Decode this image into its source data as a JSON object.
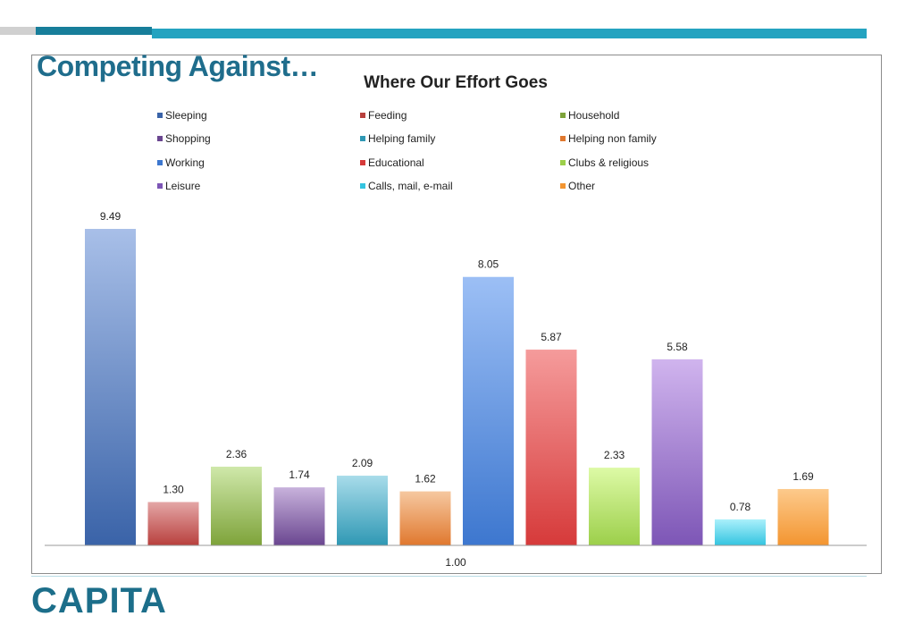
{
  "slide": {
    "title": "Competing Against…",
    "logo": "CAPITA",
    "colors": {
      "accent": "#24a3c0",
      "accent_dark": "#177e9a",
      "title": "#1f6d8c"
    }
  },
  "chart_data": {
    "type": "bar",
    "title": "Where Our Effort Goes",
    "xlabel": "",
    "ylabel": "",
    "categories": [
      "1.00"
    ],
    "ylim": [
      0,
      10
    ],
    "grid": false,
    "legend_position": "top",
    "series": [
      {
        "name": "Sleeping",
        "value": 9.49,
        "color_top": "#a8bfe8",
        "color_bottom": "#3a63a8"
      },
      {
        "name": "Feeding",
        "value": 1.3,
        "color_top": "#e4a6a6",
        "color_bottom": "#b8403d"
      },
      {
        "name": "Household",
        "value": 2.36,
        "color_top": "#cfe8aa",
        "color_bottom": "#7ea33a"
      },
      {
        "name": "Shopping",
        "value": 1.74,
        "color_top": "#c8b2dc",
        "color_bottom": "#6a4690"
      },
      {
        "name": "Helping family",
        "value": 2.09,
        "color_top": "#a8dcea",
        "color_bottom": "#2f98b4"
      },
      {
        "name": "Helping non family",
        "value": 1.62,
        "color_top": "#f6c8a0",
        "color_bottom": "#e0782e"
      },
      {
        "name": "Working",
        "value": 8.05,
        "color_top": "#9cbff5",
        "color_bottom": "#3d77cf"
      },
      {
        "name": "Educational",
        "value": 5.87,
        "color_top": "#f59b9b",
        "color_bottom": "#d63a3a"
      },
      {
        "name": "Clubs & religious",
        "value": 2.33,
        "color_top": "#ddfaa6",
        "color_bottom": "#9ccf4a"
      },
      {
        "name": "Leisure",
        "value": 5.58,
        "color_top": "#d0b4ee",
        "color_bottom": "#7d56b6"
      },
      {
        "name": "Calls, mail, e-mail",
        "value": 0.78,
        "color_top": "#aaf0fb",
        "color_bottom": "#34c4e0"
      },
      {
        "name": "Other",
        "value": 1.69,
        "color_top": "#fdca8c",
        "color_bottom": "#f39530"
      }
    ]
  }
}
